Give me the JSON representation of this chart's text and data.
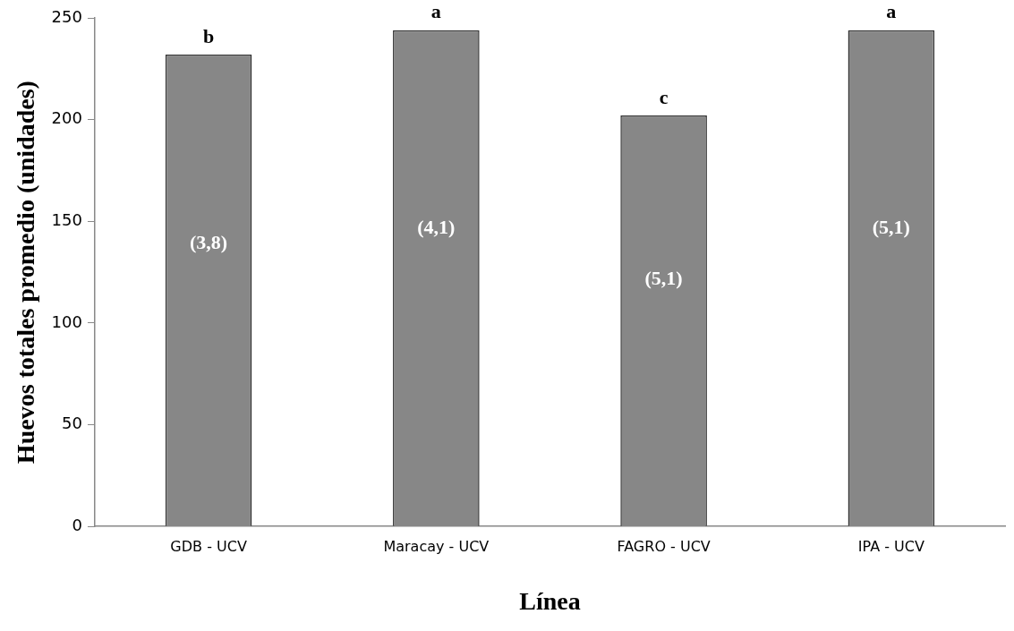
{
  "chart_data": {
    "type": "bar",
    "xlabel": "Línea",
    "ylabel": "Huevos totales promedio (unidades)",
    "categories": [
      "GDB - UCV",
      "Maracay - UCV",
      "FAGRO - UCV",
      "IPA - UCV"
    ],
    "values": [
      232,
      244,
      202,
      244
    ],
    "color": "#878787",
    "ylim": [
      0,
      250
    ],
    "yticks": [
      0,
      50,
      100,
      150,
      200,
      250
    ],
    "grid": false,
    "legend": false,
    "annotations": [
      {
        "text": "b",
        "x": "GDB - UCV",
        "y": 232
      },
      {
        "text": "a",
        "x": "Maracay - UCV",
        "y": 244
      },
      {
        "text": "c",
        "x": "FAGRO - UCV",
        "y": 202
      },
      {
        "text": "a",
        "x": "IPA - UCV",
        "y": 244
      },
      "(3,8)",
      "(4,1)",
      "(5,1)",
      "(5,1)"
    ]
  }
}
